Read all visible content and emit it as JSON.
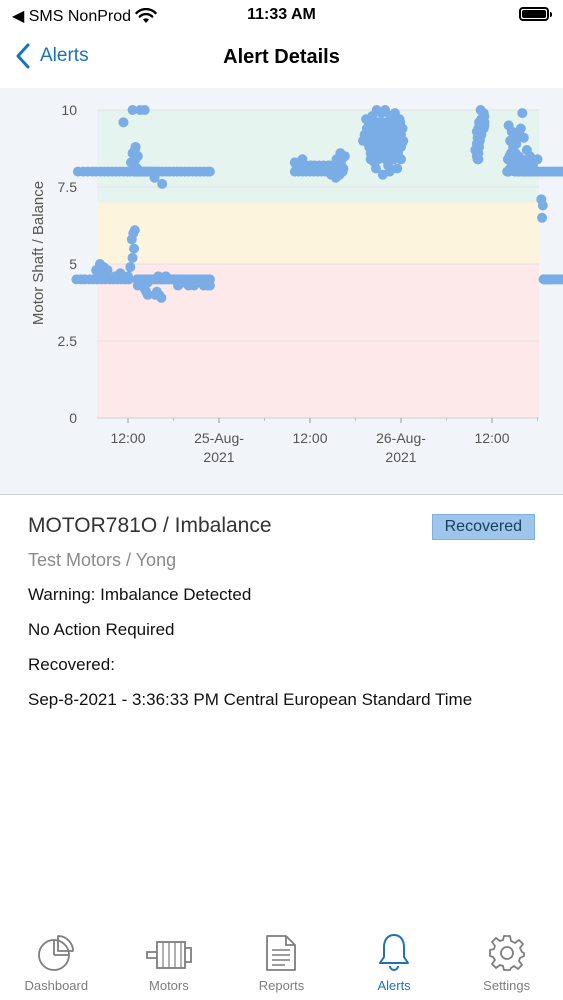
{
  "status_bar": {
    "carrier": "◀ SMS NonProd",
    "time": "11:33 AM"
  },
  "nav": {
    "back_label": "Alerts",
    "title": "Alert Details"
  },
  "chart_data": {
    "type": "scatter",
    "title": "",
    "xlabel": "",
    "ylabel": "Motor Shaft / Balance",
    "ylim": [
      0,
      10
    ],
    "y_ticks": [
      "0",
      "2.5",
      "5",
      "7.5",
      "10"
    ],
    "x_ticks": [
      {
        "label": "12:00",
        "sub": ""
      },
      {
        "label": "25-Aug-",
        "sub": "2021"
      },
      {
        "label": "12:00",
        "sub": ""
      },
      {
        "label": "26-Aug-",
        "sub": "2021"
      },
      {
        "label": "12:00",
        "sub": ""
      }
    ],
    "x_tick_hours": [
      12,
      24,
      36,
      48,
      60
    ],
    "x_range_hours": [
      5,
      76
    ],
    "x_origin": "24-Aug-2021 00:00",
    "bands": [
      {
        "from": 0,
        "to": 5,
        "color": "#fde8ea"
      },
      {
        "from": 5,
        "to": 7,
        "color": "#fdf4de"
      },
      {
        "from": 7,
        "to": 10,
        "color": "#e5f4ee"
      }
    ],
    "point_color": "#7aade6",
    "series": [
      {
        "x": [
          5.2,
          5.8,
          6.3,
          6.9,
          7.4,
          7.9,
          8.5,
          9.0,
          9.6,
          10.1,
          10.6,
          11.1,
          11.6,
          12.1,
          5.4,
          6.1,
          6.7,
          7.3,
          7.8,
          8.4,
          8.9,
          9.4,
          9.9,
          10.4,
          10.9,
          11.4,
          11.9,
          12.3,
          7.8,
          8.3,
          8.8,
          8.3,
          9.3,
          10.3,
          11.0,
          12.0,
          12.3,
          12.6,
          12.8,
          12.5,
          12.7,
          12.9,
          12.8,
          13.0,
          12.6,
          12.9,
          13.1,
          12.4,
          12.7,
          12.8,
          12.9,
          13.0,
          13.1,
          13.1,
          13.2,
          13.3,
          13.4,
          13.5,
          13.6,
          13.8,
          14.0,
          14.2,
          14.4,
          14.6,
          14.8,
          15.0,
          15.2,
          15.5,
          15.8,
          16.1,
          16.5,
          17.0,
          17.5,
          18.0,
          18.5,
          19.0,
          19.5,
          20.0,
          20.5,
          21.0,
          21.5,
          22.0,
          22.5,
          22.8,
          13.2,
          13.4,
          13.6,
          13.8,
          14.0,
          14.2,
          14.5,
          14.8,
          15.1,
          15.4,
          15.7,
          16.0,
          16.3,
          16.6,
          16.9,
          17.2,
          17.5,
          17.8,
          18.1,
          18.5,
          18.9,
          19.3,
          19.7,
          20.1,
          20.5,
          20.9,
          21.3,
          21.7,
          22.1,
          22.5,
          22.8,
          14.2,
          14.4,
          14.6,
          15.6,
          15.8,
          16.1,
          16.4,
          18.6,
          19.2,
          20.0,
          20.7,
          13.3,
          13.9,
          14.6,
          15.2,
          16.0,
          16.5,
          17.0,
          17.5,
          18.0,
          18.5,
          19.0,
          19.5,
          20.0,
          20.5,
          21.0,
          21.5,
          22.0,
          22.5,
          22.8,
          15.5,
          16.5,
          11.4,
          12.6,
          13.6,
          14.2,
          13.0,
          13.3
        ],
        "y": [
          4.5,
          4.5,
          4.5,
          4.5,
          4.5,
          4.5,
          4.5,
          4.5,
          4.5,
          4.5,
          4.5,
          4.5,
          4.5,
          4.5,
          8.0,
          8.0,
          8.0,
          8.0,
          8.0,
          8.0,
          8.0,
          8.0,
          8.0,
          8.0,
          8.0,
          8.0,
          8.0,
          8.0,
          4.8,
          4.7,
          4.9,
          5.0,
          4.8,
          4.6,
          4.7,
          4.6,
          4.9,
          5.2,
          5.5,
          5.8,
          6.0,
          6.1,
          8.2,
          8.4,
          8.6,
          8.7,
          8.5,
          8.3,
          8.1,
          8.0,
          8.0,
          8.1,
          8.0,
          8.0,
          8.1,
          8.0,
          8.0,
          8.0,
          8.0,
          8.0,
          8.0,
          8.0,
          8.0,
          8.0,
          8.0,
          8.0,
          8.0,
          8.0,
          8.0,
          8.0,
          8.0,
          8.0,
          8.0,
          8.0,
          8.0,
          8.0,
          8.0,
          8.0,
          8.0,
          8.0,
          8.0,
          8.0,
          8.0,
          8.0,
          4.5,
          4.5,
          4.5,
          4.5,
          4.5,
          4.5,
          4.5,
          4.5,
          4.5,
          4.5,
          4.5,
          4.5,
          4.5,
          4.5,
          4.5,
          4.5,
          4.5,
          4.5,
          4.5,
          4.5,
          4.5,
          4.5,
          4.5,
          4.5,
          4.5,
          4.5,
          4.5,
          4.5,
          4.5,
          4.5,
          4.5,
          4.2,
          4.1,
          4.0,
          4.0,
          4.1,
          4.0,
          3.9,
          4.3,
          4.4,
          4.3,
          4.3,
          4.3,
          4.4,
          4.4,
          4.5,
          4.6,
          4.5,
          4.6,
          4.5,
          4.5,
          4.5,
          4.5,
          4.5,
          4.4,
          4.4,
          4.4,
          4.4,
          4.3,
          4.3,
          4.3,
          7.8,
          7.6,
          9.6,
          10.0,
          10.0,
          10.0,
          8.8,
          8.5
        ]
      },
      {
        "x": [
          34.0,
          34.5,
          35.0,
          35.5,
          36.0,
          36.5,
          37.0,
          37.5,
          38.0,
          38.5,
          39.0,
          39.5,
          40.0,
          40.3,
          34.2,
          34.8,
          35.4,
          36.0,
          36.6,
          37.2,
          37.8,
          38.4,
          39.0,
          39.6,
          40.1,
          34.0,
          35.0,
          36.2,
          37.4,
          38.6,
          39.5,
          40.2,
          38.8,
          39.4,
          39.9,
          40.4,
          40.6,
          39.7,
          40.0,
          40.2
        ],
        "y": [
          8.0,
          8.0,
          8.0,
          8.0,
          8.0,
          8.0,
          8.0,
          8.0,
          8.0,
          8.0,
          8.0,
          8.0,
          8.0,
          8.0,
          8.2,
          8.2,
          8.2,
          8.2,
          8.2,
          8.2,
          8.2,
          8.2,
          8.2,
          8.2,
          8.2,
          8.3,
          8.4,
          8.2,
          8.1,
          8.2,
          8.4,
          8.5,
          7.9,
          7.8,
          7.9,
          8.1,
          8.5,
          8.3,
          8.6,
          8.4
        ]
      },
      {
        "x": [
          43.0,
          43.5,
          44.0,
          44.5,
          45.0,
          45.5,
          46.0,
          46.5,
          47.0,
          47.5,
          48.0,
          48.3,
          43.2,
          43.8,
          44.4,
          45.0,
          45.6,
          46.2,
          46.8,
          47.4,
          48.0,
          43.5,
          44.1,
          44.7,
          45.3,
          45.9,
          46.5,
          47.1,
          47.7,
          48.2,
          43.8,
          44.4,
          45.0,
          45.6,
          46.2,
          46.8,
          47.4,
          48.0,
          44.0,
          44.6,
          45.2,
          45.8,
          46.4,
          47.0,
          47.6,
          44.3,
          44.9,
          45.5,
          46.1,
          46.7,
          47.3,
          47.9,
          44.0,
          45.0,
          46.0,
          47.0,
          48.0,
          43.4,
          44.2,
          45.4,
          46.6,
          47.8,
          44.8,
          45.9,
          47.2,
          46.3,
          47.5,
          44.5,
          46.5,
          48.1,
          45.6,
          44.7,
          43.6
        ],
        "y": [
          9.0,
          9.0,
          9.0,
          9.0,
          9.0,
          9.0,
          9.0,
          9.0,
          9.0,
          9.0,
          9.0,
          9.0,
          9.2,
          9.2,
          9.2,
          9.2,
          9.2,
          9.2,
          9.2,
          9.2,
          9.2,
          9.4,
          9.4,
          9.4,
          9.4,
          9.4,
          9.4,
          9.4,
          9.4,
          9.4,
          8.8,
          8.8,
          8.8,
          8.8,
          8.8,
          8.8,
          8.8,
          8.8,
          8.6,
          8.6,
          8.6,
          8.6,
          8.6,
          8.6,
          8.6,
          9.6,
          9.6,
          9.6,
          9.6,
          9.6,
          9.6,
          9.6,
          8.4,
          8.4,
          8.4,
          8.4,
          8.4,
          9.7,
          9.8,
          9.9,
          9.8,
          9.7,
          10.0,
          10.0,
          9.9,
          8.2,
          8.1,
          8.3,
          8.0,
          8.9,
          7.9,
          8.1,
          9.0
        ]
      },
      {
        "x": [
          57.8,
          58.0,
          58.1,
          58.2,
          58.3,
          58.4,
          58.5,
          58.6,
          58.7,
          58.8,
          58.9,
          59.0,
          58.0,
          58.2,
          58.4,
          58.6,
          58.8,
          59.0,
          58.1,
          58.3,
          58.5,
          58.7,
          58.9,
          58.0,
          58.2,
          58.4,
          58.6,
          58.9,
          58.5,
          58.2,
          58.7,
          59.0,
          58.3,
          58.6
        ],
        "y": [
          8.7,
          8.5,
          8.4,
          8.6,
          8.8,
          9.0,
          9.2,
          9.3,
          9.4,
          9.5,
          9.4,
          9.6,
          9.3,
          9.4,
          9.5,
          9.7,
          9.6,
          9.8,
          9.1,
          9.2,
          9.3,
          9.5,
          9.6,
          8.9,
          9.0,
          9.1,
          9.4,
          9.9,
          10.0,
          8.4,
          9.7,
          9.5,
          9.6,
          9.2
        ]
      },
      {
        "x": [
          62.0,
          62.2,
          62.4,
          62.6,
          62.8,
          63.0,
          63.2,
          63.4,
          63.6,
          63.8,
          64.0,
          64.2,
          64.4,
          64.6,
          64.8,
          65.0,
          65.2,
          65.5,
          65.8,
          66.1,
          66.4,
          66.7,
          67.0,
          67.3,
          67.6,
          67.9,
          68.2,
          68.5,
          68.8,
          69.1,
          69.4,
          69.7,
          70.0,
          62.1,
          62.3,
          62.5,
          62.7,
          62.9,
          63.1,
          63.3,
          63.5,
          63.7,
          63.9,
          64.1,
          64.3,
          64.5,
          64.7,
          64.9,
          62.2,
          62.6,
          63.0,
          63.4,
          63.8,
          64.2,
          64.6,
          65.0,
          62.4,
          62.8,
          63.2,
          63.6,
          64.0,
          64.4,
          64.8,
          64.0,
          65.4,
          66.0,
          66.5,
          66.7,
          66.6,
          66.8,
          67.0,
          67.2,
          67.4,
          67.6,
          67.8,
          68.0,
          68.3,
          68.6,
          68.9,
          69.2,
          69.5,
          69.8,
          70.1,
          70.4,
          70.7,
          71.0,
          71.3,
          71.6,
          71.9
        ],
        "y": [
          8.0,
          8.0,
          8.1,
          8.2,
          8.3,
          8.0,
          8.1,
          8.0,
          8.0,
          8.1,
          8.0,
          8.0,
          8.0,
          8.0,
          8.0,
          8.0,
          8.0,
          8.0,
          8.0,
          8.0,
          8.0,
          8.0,
          8.0,
          8.0,
          8.0,
          8.0,
          8.0,
          8.0,
          8.0,
          8.0,
          8.0,
          8.0,
          8.0,
          8.4,
          8.5,
          8.6,
          8.4,
          8.5,
          8.6,
          8.4,
          8.5,
          8.3,
          8.4,
          8.2,
          8.3,
          8.1,
          8.2,
          8.4,
          9.5,
          9.3,
          9.0,
          9.2,
          9.4,
          9.1,
          8.7,
          8.5,
          9.0,
          8.8,
          8.9,
          9.3,
          9.9,
          8.2,
          8.3,
          8.0,
          8.2,
          8.4,
          7.1,
          6.9,
          6.5,
          4.5,
          4.5,
          4.5,
          4.5,
          4.5,
          4.5,
          4.5,
          4.5,
          4.5,
          4.5,
          4.5,
          4.5,
          4.5,
          4.5,
          4.5,
          4.5,
          4.5,
          4.5,
          4.5,
          4.5
        ]
      }
    ]
  },
  "alert": {
    "title": "MOTOR781O / Imbalance",
    "status": "Recovered",
    "subtitle": "Test Motors / Yong",
    "warning": "Warning: Imbalance Detected",
    "action": "No Action Required",
    "recovered_label": "Recovered:",
    "timestamp": "Sep-8-2021 - 3:36:33 PM Central European Standard Time"
  },
  "tabs": [
    {
      "label": "Dashboard",
      "icon": "dashboard-icon",
      "active": false
    },
    {
      "label": "Motors",
      "icon": "motor-icon",
      "active": false
    },
    {
      "label": "Reports",
      "icon": "report-icon",
      "active": false
    },
    {
      "label": "Alerts",
      "icon": "bell-icon",
      "active": true
    },
    {
      "label": "Settings",
      "icon": "gear-icon",
      "active": false
    }
  ],
  "colors": {
    "accent": "#1a73b8",
    "inactive_tab": "#7d7d7d",
    "badge_bg": "#9ec6ea"
  }
}
